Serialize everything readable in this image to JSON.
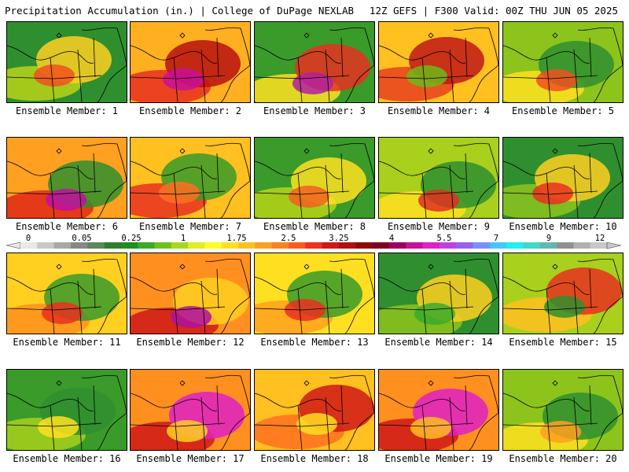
{
  "header": {
    "title": "Precipitation Accumulation (in.) | College of DuPage NEXLAB",
    "run_info": "12Z GEFS | F300 Valid: 00Z THU JUN 05 2025"
  },
  "colorbar": {
    "tick_labels": [
      "0",
      "0.05",
      "0.25",
      "1",
      "1.75",
      "2.5",
      "3.25",
      "4",
      "5.5",
      "7",
      "9",
      "12"
    ],
    "colors": [
      "#e8e8e8",
      "#c8c8c8",
      "#a8a8a8",
      "#888888",
      "#5a8a5a",
      "#2f7d2f",
      "#1f8f1f",
      "#3aaa2a",
      "#6cc21c",
      "#a8d81c",
      "#e0ee20",
      "#ffff20",
      "#ffe020",
      "#ffc020",
      "#ffa020",
      "#ff8020",
      "#ff5a20",
      "#f03020",
      "#d01818",
      "#b01010",
      "#900808",
      "#800020",
      "#a00060",
      "#c8109a",
      "#e020c8",
      "#c040e0",
      "#9860f0",
      "#7890ff",
      "#40c8ff",
      "#20f0f0",
      "#40d8c8",
      "#60b8b0",
      "#909090",
      "#b0b0b0",
      "#c8c8c8"
    ]
  },
  "panels": [
    {
      "label": "Ensemble Member: 1",
      "base": "#2f8f2f",
      "blobs": [
        {
          "c": "#b8d418"
        },
        {
          "c": "#ffd020"
        },
        {
          "c": "#f05020"
        }
      ]
    },
    {
      "label": "Ensemble Member: 2",
      "base": "#ffb020",
      "blobs": [
        {
          "c": "#e83020"
        },
        {
          "c": "#b81010"
        },
        {
          "c": "#c81098"
        }
      ]
    },
    {
      "label": "Ensemble Member: 3",
      "base": "#3a9a2a",
      "blobs": [
        {
          "c": "#ffe020"
        },
        {
          "c": "#e83020"
        },
        {
          "c": "#b020a0"
        }
      ]
    },
    {
      "label": "Ensemble Member: 4",
      "base": "#ffc020",
      "blobs": [
        {
          "c": "#e84020"
        },
        {
          "c": "#c01818"
        },
        {
          "c": "#70b818"
        }
      ]
    },
    {
      "label": "Ensemble Member: 5",
      "base": "#8cc41c",
      "blobs": [
        {
          "c": "#ffe020"
        },
        {
          "c": "#2f8f2f"
        },
        {
          "c": "#f05020"
        }
      ]
    },
    {
      "label": "Ensemble Member: 6",
      "base": "#ffa020",
      "blobs": [
        {
          "c": "#e02818"
        },
        {
          "c": "#2f8f2f"
        },
        {
          "c": "#c010a0"
        }
      ]
    },
    {
      "label": "Ensemble Member: 7",
      "base": "#ffc020",
      "blobs": [
        {
          "c": "#e83020"
        },
        {
          "c": "#3a9a2a"
        },
        {
          "c": "#ff7020"
        }
      ]
    },
    {
      "label": "Ensemble Member: 8",
      "base": "#3a9a2a",
      "blobs": [
        {
          "c": "#b8d418"
        },
        {
          "c": "#ffe020"
        },
        {
          "c": "#f06020"
        }
      ]
    },
    {
      "label": "Ensemble Member: 9",
      "base": "#a8d01c",
      "blobs": [
        {
          "c": "#ffe020"
        },
        {
          "c": "#2f8f2f"
        },
        {
          "c": "#e03020"
        }
      ]
    },
    {
      "label": "Ensemble Member: 10",
      "base": "#2f8f2f",
      "blobs": [
        {
          "c": "#8cc41c"
        },
        {
          "c": "#ffd020"
        },
        {
          "c": "#e83020"
        }
      ]
    },
    {
      "label": "Ensemble Member: 11",
      "base": "#ffd020",
      "blobs": [
        {
          "c": "#ff9020"
        },
        {
          "c": "#3a9a2a"
        },
        {
          "c": "#e83020"
        }
      ]
    },
    {
      "label": "Ensemble Member: 12",
      "base": "#ff9020",
      "blobs": [
        {
          "c": "#d01818"
        },
        {
          "c": "#ffd020"
        },
        {
          "c": "#b010a0"
        }
      ]
    },
    {
      "label": "Ensemble Member: 13",
      "base": "#ffe020",
      "blobs": [
        {
          "c": "#ffa020"
        },
        {
          "c": "#3a9a2a"
        },
        {
          "c": "#e83020"
        }
      ]
    },
    {
      "label": "Ensemble Member: 14",
      "base": "#2f8f2f",
      "blobs": [
        {
          "c": "#8cc41c"
        },
        {
          "c": "#ffd020"
        },
        {
          "c": "#3aaa2a"
        }
      ]
    },
    {
      "label": "Ensemble Member: 15",
      "base": "#a8d01c",
      "blobs": [
        {
          "c": "#ffc020"
        },
        {
          "c": "#e83020"
        },
        {
          "c": "#2f8f2f"
        }
      ]
    },
    {
      "label": "Ensemble Member: 16",
      "base": "#3a9a2a",
      "blobs": [
        {
          "c": "#a8d01c"
        },
        {
          "c": "#2f8f2f"
        },
        {
          "c": "#ffe020"
        }
      ]
    },
    {
      "label": "Ensemble Member: 17",
      "base": "#ff9020",
      "blobs": [
        {
          "c": "#d01818"
        },
        {
          "c": "#e020c8"
        },
        {
          "c": "#ffd020"
        }
      ]
    },
    {
      "label": "Ensemble Member: 18",
      "base": "#ffc020",
      "blobs": [
        {
          "c": "#ff7020"
        },
        {
          "c": "#d01818"
        },
        {
          "c": "#ffe020"
        }
      ]
    },
    {
      "label": "Ensemble Member: 19",
      "base": "#ff9020",
      "blobs": [
        {
          "c": "#d01818"
        },
        {
          "c": "#e020c8"
        },
        {
          "c": "#ffc020"
        }
      ]
    },
    {
      "label": "Ensemble Member: 20",
      "base": "#8cc41c",
      "blobs": [
        {
          "c": "#ffe020"
        },
        {
          "c": "#2f8f2f"
        },
        {
          "c": "#ffa020"
        }
      ]
    }
  ]
}
